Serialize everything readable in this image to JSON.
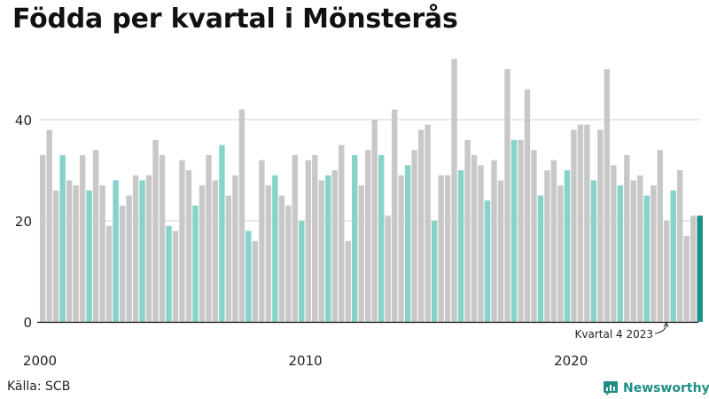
{
  "title": "Födda per kvartal i Mönsterås",
  "source": "Källa: SCB",
  "brand": {
    "name": "Newsworthy",
    "icon": "newsworthy-chart-bubble-icon"
  },
  "colors": {
    "default": "#c8c8c8",
    "q4": "#86d3cc",
    "latest": "#1a8f86",
    "axis": "#111111",
    "grid": "#d0d0d0"
  },
  "chart_data": {
    "type": "bar",
    "title": "Födda per kvartal i Mönsterås",
    "xlabel": "",
    "ylabel": "",
    "ylim": [
      0,
      52
    ],
    "yticks": [
      0,
      20,
      40
    ],
    "x_tick_labels": [
      {
        "label": "2000",
        "year": 2000
      },
      {
        "label": "2010",
        "year": 2010
      },
      {
        "label": "2020",
        "year": 2020
      }
    ],
    "start_year": 2000,
    "start_quarter": 1,
    "highlight_quarter": 4,
    "annotation": "Kvartal 4 2023",
    "values": [
      33,
      38,
      26,
      33,
      28,
      27,
      33,
      26,
      34,
      27,
      19,
      28,
      23,
      25,
      29,
      28,
      29,
      36,
      33,
      19,
      18,
      32,
      30,
      23,
      27,
      33,
      28,
      35,
      25,
      29,
      42,
      18,
      16,
      32,
      27,
      29,
      25,
      23,
      33,
      20,
      32,
      33,
      28,
      29,
      30,
      35,
      16,
      33,
      27,
      34,
      40,
      33,
      21,
      42,
      29,
      31,
      34,
      38,
      39,
      20,
      29,
      29,
      52,
      30,
      36,
      33,
      31,
      24,
      32,
      28,
      50,
      36,
      36,
      46,
      34,
      25,
      30,
      32,
      27,
      30,
      38,
      39,
      39,
      28,
      38,
      50,
      31,
      27,
      33,
      28,
      29,
      25,
      27,
      34,
      20,
      26,
      30,
      17,
      21,
      21
    ]
  }
}
